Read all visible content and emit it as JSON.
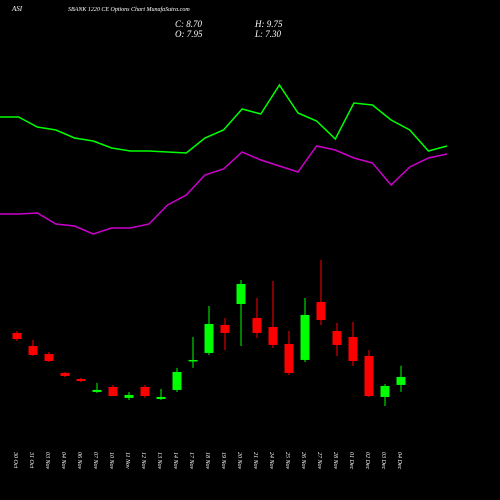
{
  "chart_data": {
    "type": "candlestick",
    "symbol": "ASI",
    "title": "SBANK 1220 CE Options  Chart MunafaSutra.com",
    "header": [
      "C: 8.70",
      "H: 9.75",
      "O: 7.95",
      "L: 7.30"
    ],
    "categories": [
      "30 Oct",
      "31 Oct",
      "03 Nov",
      "04 Nov",
      "06 Nov",
      "07 Nov",
      "10 Nov",
      "11 Nov",
      "12 Nov",
      "13 Nov",
      "14 Nov",
      "17 Nov",
      "18 Nov",
      "19 Nov",
      "20 Nov",
      "21 Nov",
      "24 Nov",
      "25 Nov",
      "26 Nov",
      "27 Nov",
      "28 Nov",
      "01 Dec",
      "02 Dec",
      "03 Dec",
      "04 Dec"
    ],
    "open": [
      12.84,
      11.61,
      10.86,
      9.08,
      8.51,
      7.29,
      7.76,
      6.73,
      7.76,
      6.63,
      7.48,
      10.2,
      10.96,
      13.59,
      15.56,
      14.25,
      13.4,
      11.8,
      10.3,
      15.75,
      13.02,
      12.46,
      10.67,
      6.82,
      7.95
    ],
    "high": [
      13.02,
      12.18,
      11.05,
      9.17,
      8.61,
      8.14,
      7.95,
      7.29,
      7.95,
      7.57,
      9.55,
      12.46,
      15.37,
      14.25,
      17.82,
      16.13,
      17.72,
      13.02,
      16.13,
      19.7,
      13.78,
      13.87,
      11.24,
      8.04,
      9.75
    ],
    "low": [
      12.08,
      10.67,
      10.11,
      8.7,
      8.23,
      7.2,
      6.91,
      6.54,
      6.73,
      6.54,
      7.29,
      9.55,
      10.77,
      11.24,
      11.61,
      12.37,
      11.43,
      8.89,
      10.11,
      13.59,
      10.67,
      9.73,
      6.82,
      5.97,
      7.3
    ],
    "close": [
      12.27,
      10.77,
      10.2,
      8.79,
      8.32,
      7.48,
      6.91,
      7.01,
      6.91,
      6.82,
      9.17,
      10.3,
      13.68,
      12.84,
      17.44,
      12.84,
      11.71,
      9.08,
      14.53,
      14.06,
      11.71,
      10.2,
      6.91,
      7.85,
      8.7
    ],
    "up_color": "#00ff00",
    "down_color": "#ff0000",
    "lines": [
      {
        "color": "#00ff00",
        "values": [
          18.3,
          18.3,
          17.3,
          17.0,
          16.2,
          15.9,
          15.2,
          14.9,
          14.9,
          14.8,
          14.7,
          16.2,
          17.0,
          19.1,
          18.6,
          21.5,
          18.7,
          17.9,
          16.1,
          19.7,
          19.5,
          18.0,
          17.0,
          14.9,
          15.4
        ]
      },
      {
        "color": "#cc00cc",
        "values": [
          8.6,
          8.6,
          8.7,
          7.6,
          7.4,
          6.6,
          7.2,
          7.2,
          7.6,
          9.5,
          10.5,
          12.5,
          13.1,
          14.8,
          14.0,
          13.4,
          12.8,
          15.4,
          15.0,
          14.2,
          13.7,
          11.5,
          13.3,
          14.2,
          14.6
        ]
      }
    ]
  }
}
